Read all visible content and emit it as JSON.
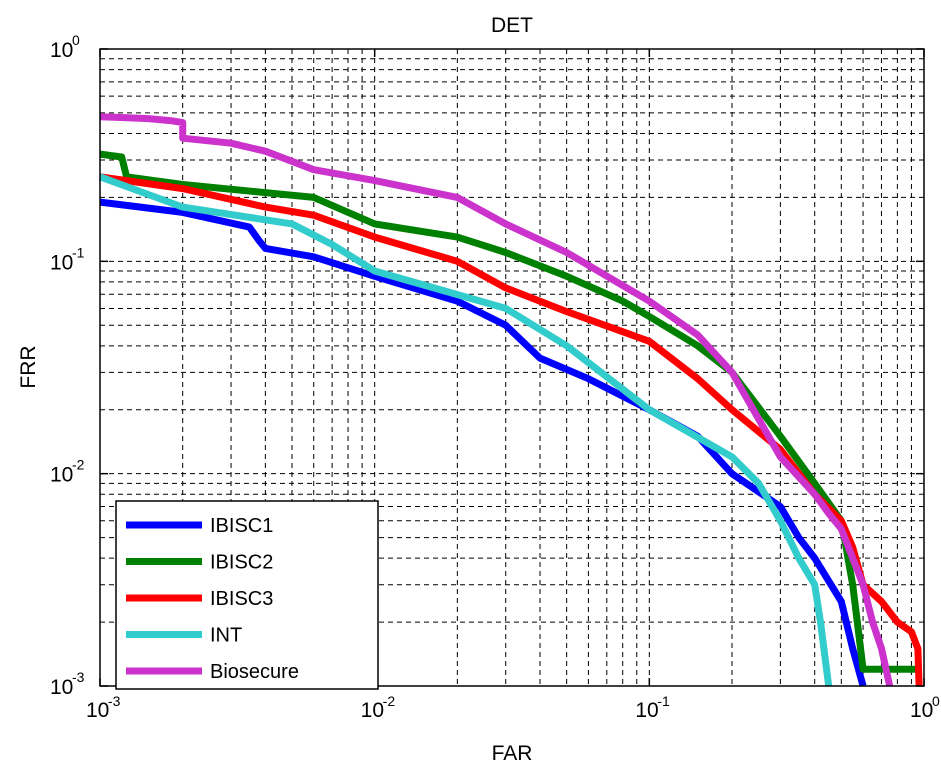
{
  "chart_data": {
    "type": "line",
    "title": "DET",
    "xlabel": "FAR",
    "ylabel": "FRR",
    "xscale": "log",
    "yscale": "log",
    "xlim": [
      0.001,
      1
    ],
    "ylim": [
      0.001,
      1
    ],
    "grid": true,
    "grid_style": "dashed",
    "legend_position": "bottom-left",
    "x_ticks": [
      {
        "base": "10",
        "exp": "-3"
      },
      {
        "base": "10",
        "exp": "-2"
      },
      {
        "base": "10",
        "exp": "-1"
      },
      {
        "base": "10",
        "exp": "0"
      }
    ],
    "y_ticks": [
      {
        "base": "10",
        "exp": "-3"
      },
      {
        "base": "10",
        "exp": "-2"
      },
      {
        "base": "10",
        "exp": "-1"
      },
      {
        "base": "10",
        "exp": "0"
      }
    ],
    "series": [
      {
        "name": "IBISC1",
        "color": "#0000ff",
        "points": [
          [
            0.001,
            0.19
          ],
          [
            0.002,
            0.17
          ],
          [
            0.0035,
            0.145
          ],
          [
            0.0038,
            0.125
          ],
          [
            0.004,
            0.115
          ],
          [
            0.006,
            0.105
          ],
          [
            0.01,
            0.085
          ],
          [
            0.02,
            0.065
          ],
          [
            0.03,
            0.05
          ],
          [
            0.04,
            0.035
          ],
          [
            0.06,
            0.028
          ],
          [
            0.1,
            0.02
          ],
          [
            0.15,
            0.015
          ],
          [
            0.2,
            0.01
          ],
          [
            0.3,
            0.007
          ],
          [
            0.35,
            0.005
          ],
          [
            0.4,
            0.004
          ],
          [
            0.5,
            0.0025
          ],
          [
            0.55,
            0.0015
          ],
          [
            0.6,
            0.001
          ]
        ]
      },
      {
        "name": "IBISC2",
        "color": "#008000",
        "points": [
          [
            0.001,
            0.32
          ],
          [
            0.0012,
            0.31
          ],
          [
            0.00125,
            0.25
          ],
          [
            0.002,
            0.23
          ],
          [
            0.006,
            0.2
          ],
          [
            0.01,
            0.15
          ],
          [
            0.02,
            0.13
          ],
          [
            0.03,
            0.11
          ],
          [
            0.05,
            0.085
          ],
          [
            0.08,
            0.065
          ],
          [
            0.1,
            0.055
          ],
          [
            0.15,
            0.04
          ],
          [
            0.2,
            0.03
          ],
          [
            0.3,
            0.015
          ],
          [
            0.4,
            0.009
          ],
          [
            0.5,
            0.006
          ],
          [
            0.55,
            0.003
          ],
          [
            0.6,
            0.0012
          ],
          [
            0.95,
            0.0012
          ]
        ]
      },
      {
        "name": "IBISC3",
        "color": "#ff0000",
        "points": [
          [
            0.001,
            0.25
          ],
          [
            0.002,
            0.22
          ],
          [
            0.004,
            0.18
          ],
          [
            0.006,
            0.165
          ],
          [
            0.01,
            0.13
          ],
          [
            0.02,
            0.1
          ],
          [
            0.03,
            0.075
          ],
          [
            0.05,
            0.058
          ],
          [
            0.1,
            0.042
          ],
          [
            0.15,
            0.028
          ],
          [
            0.2,
            0.02
          ],
          [
            0.3,
            0.013
          ],
          [
            0.4,
            0.008
          ],
          [
            0.5,
            0.006
          ],
          [
            0.55,
            0.0045
          ],
          [
            0.6,
            0.003
          ],
          [
            0.7,
            0.0025
          ],
          [
            0.8,
            0.002
          ],
          [
            0.9,
            0.0018
          ],
          [
            0.95,
            0.0015
          ],
          [
            0.96,
            0.001
          ]
        ]
      },
      {
        "name": "INT",
        "color": "#33cccc",
        "points": [
          [
            0.001,
            0.25
          ],
          [
            0.002,
            0.18
          ],
          [
            0.005,
            0.15
          ],
          [
            0.007,
            0.12
          ],
          [
            0.01,
            0.09
          ],
          [
            0.03,
            0.06
          ],
          [
            0.05,
            0.04
          ],
          [
            0.1,
            0.02
          ],
          [
            0.2,
            0.012
          ],
          [
            0.25,
            0.009
          ],
          [
            0.3,
            0.006
          ],
          [
            0.35,
            0.004
          ],
          [
            0.4,
            0.003
          ],
          [
            0.42,
            0.002
          ],
          [
            0.45,
            0.001
          ]
        ]
      },
      {
        "name": "Biosecure",
        "color": "#cc33cc",
        "points": [
          [
            0.001,
            0.48
          ],
          [
            0.0015,
            0.47
          ],
          [
            0.0018,
            0.46
          ],
          [
            0.002,
            0.45
          ],
          [
            0.002,
            0.38
          ],
          [
            0.003,
            0.36
          ],
          [
            0.004,
            0.33
          ],
          [
            0.006,
            0.27
          ],
          [
            0.01,
            0.24
          ],
          [
            0.02,
            0.2
          ],
          [
            0.03,
            0.15
          ],
          [
            0.05,
            0.11
          ],
          [
            0.1,
            0.065
          ],
          [
            0.15,
            0.045
          ],
          [
            0.2,
            0.03
          ],
          [
            0.3,
            0.012
          ],
          [
            0.4,
            0.008
          ],
          [
            0.45,
            0.0065
          ],
          [
            0.5,
            0.0055
          ],
          [
            0.55,
            0.004
          ],
          [
            0.6,
            0.003
          ],
          [
            0.65,
            0.002
          ],
          [
            0.7,
            0.0015
          ],
          [
            0.75,
            0.001
          ]
        ]
      }
    ]
  }
}
